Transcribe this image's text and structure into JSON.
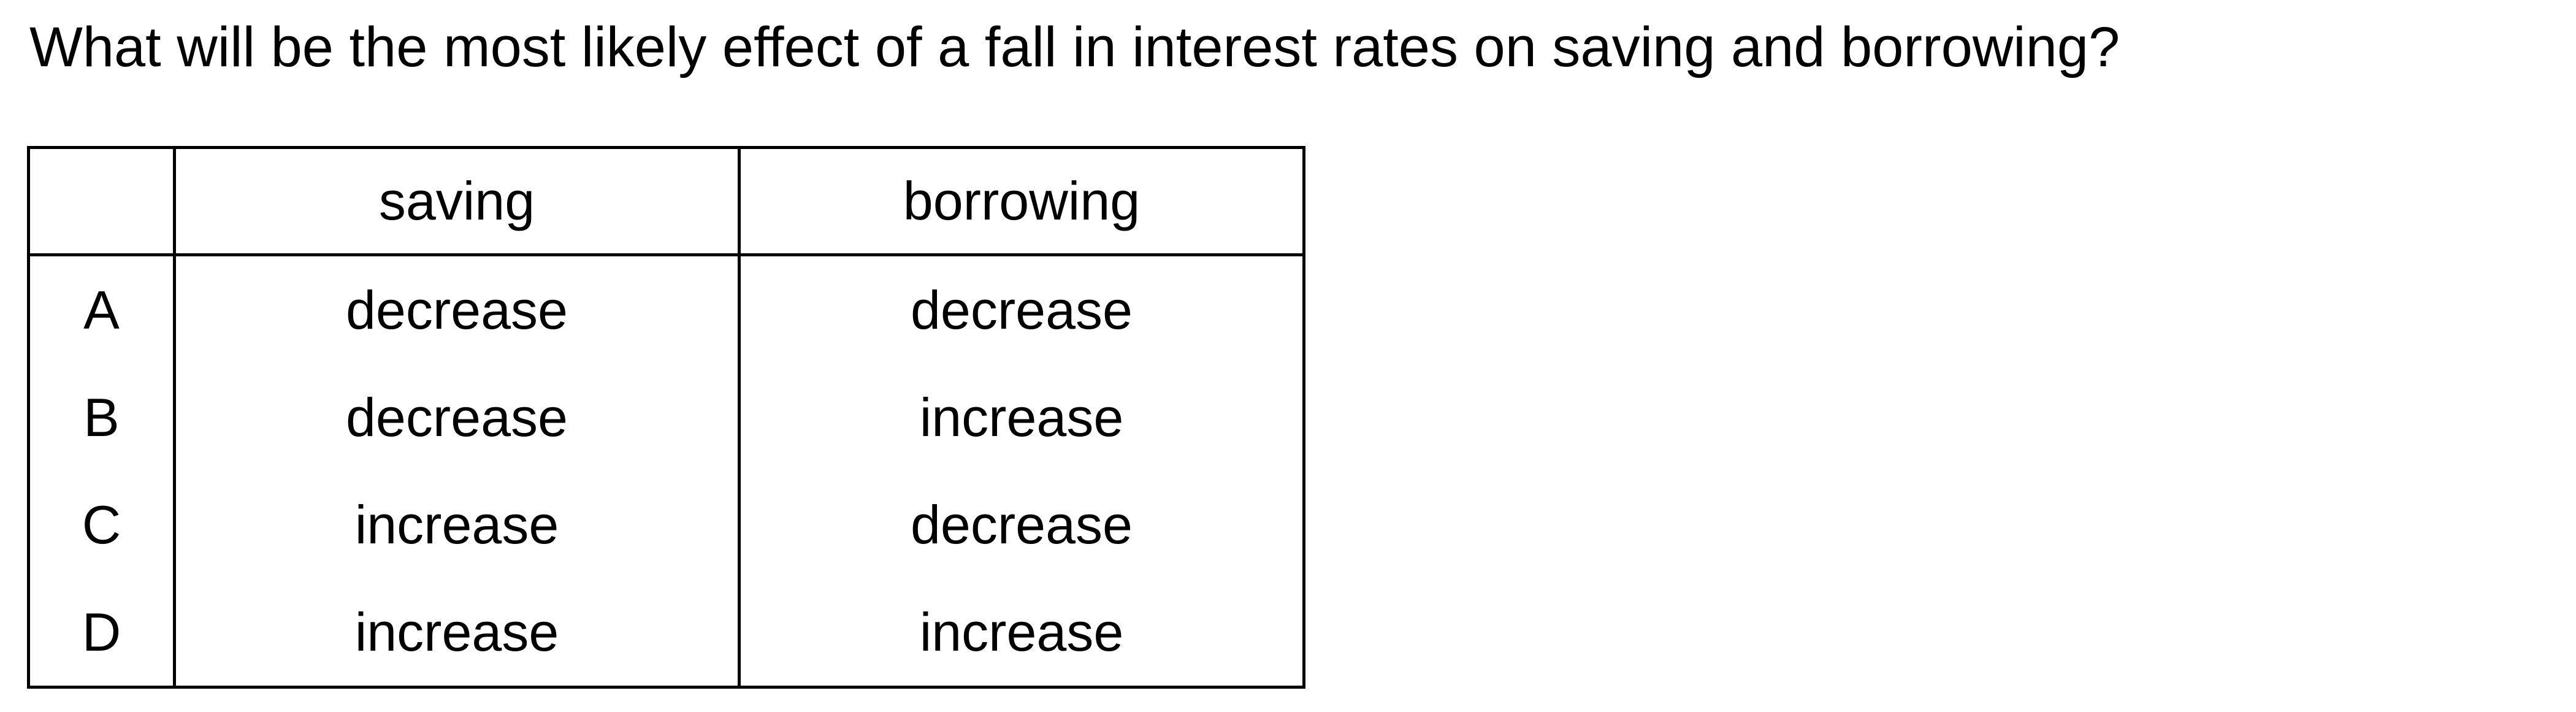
{
  "question": "What will be the most likely effect of a fall in interest rates on saving and borrowing?",
  "table": {
    "headers": [
      "",
      "saving",
      "borrowing"
    ],
    "rows": [
      {
        "key": "A",
        "saving": "decrease",
        "borrowing": "decrease"
      },
      {
        "key": "B",
        "saving": "decrease",
        "borrowing": "increase"
      },
      {
        "key": "C",
        "saving": "increase",
        "borrowing": "decrease"
      },
      {
        "key": "D",
        "saving": "increase",
        "borrowing": "increase"
      }
    ]
  }
}
